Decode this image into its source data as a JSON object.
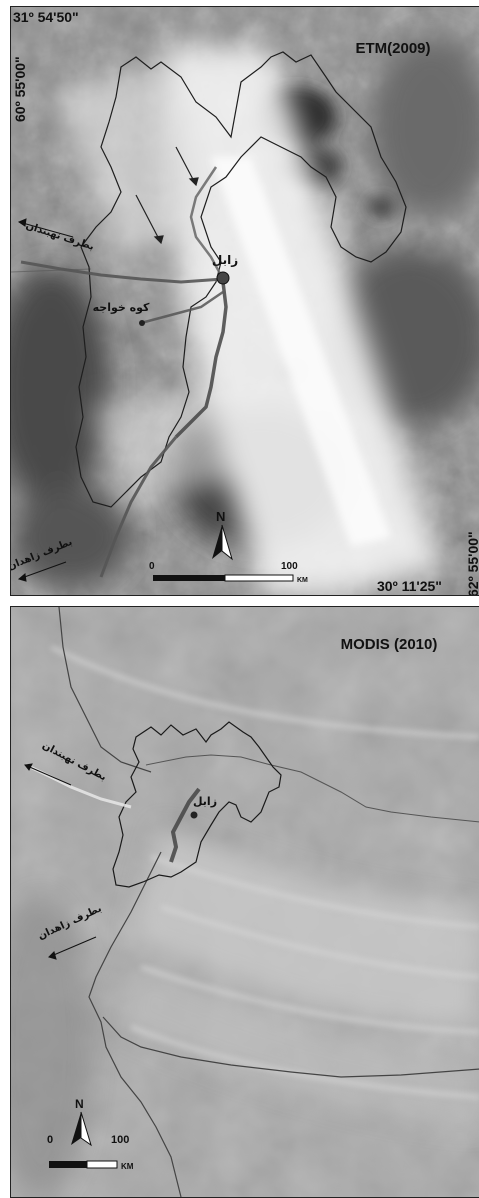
{
  "etm": {
    "title": "ETM(2009)",
    "coord_top_left": "31º 54'50\"",
    "coord_left_vertical": "60º 55'00\"",
    "coord_right_vertical": "62º 55'00\"",
    "coord_bottom_right": "30º 11'25\"",
    "city_zabol": "زابل",
    "kuh_khajeh": "کوه خواجه",
    "to_nehbandan": "بطرف نهبندان",
    "to_zahedan": "بطرف زاهدان",
    "north": "N",
    "scale_zero": "0",
    "scale_max": "100",
    "scale_unit": "KM"
  },
  "modis": {
    "title": "MODIS (2010)",
    "city_zabol": "زابل",
    "to_nehbandan": "بطرف نهبندان",
    "to_zahedan": "بطرف زاهدان",
    "north": "N",
    "scale_zero": "0",
    "scale_max": "100",
    "scale_unit": "KM"
  },
  "colors": {
    "etm_bright": "#e8e8e8",
    "etm_dark": "#3a3a3a",
    "modis_base": "#a9a9a9",
    "boundary": "#2a2a2a"
  }
}
